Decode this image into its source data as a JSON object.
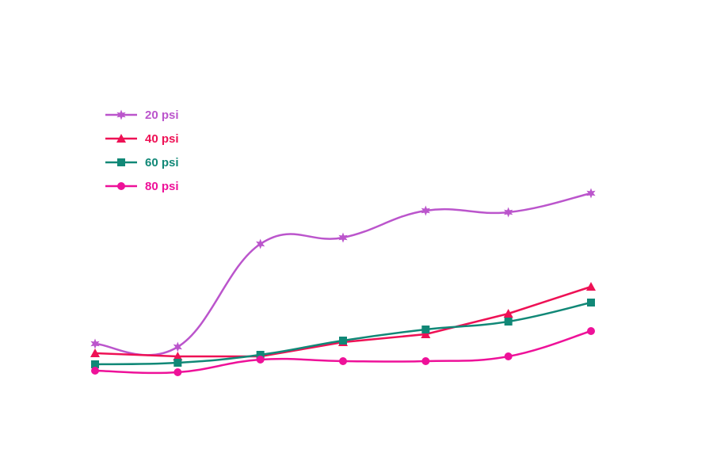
{
  "chart_data": {
    "type": "line",
    "title": "",
    "xlabel": "",
    "ylabel": "",
    "x": [
      1,
      2,
      3,
      4,
      5,
      6,
      7
    ],
    "ylim": [
      0,
      100
    ],
    "grid": false,
    "legend_position": "top-left",
    "series": [
      {
        "name": "20 psi",
        "color": "#bb55cc",
        "marker": "star",
        "curve": "smooth",
        "values": [
          13.5,
          12.5,
          45,
          47,
          55.5,
          55,
          61
        ]
      },
      {
        "name": "40 psi",
        "color": "#ee1155",
        "marker": "triangle",
        "curve": "straight",
        "values": [
          10.5,
          9.5,
          9.5,
          14,
          16.5,
          23,
          31.5
        ]
      },
      {
        "name": "60 psi",
        "color": "#118877",
        "marker": "square",
        "curve": "smooth",
        "values": [
          7,
          7.5,
          10,
          14.5,
          18,
          20.5,
          26.5
        ]
      },
      {
        "name": "80 psi",
        "color": "#ee1199",
        "marker": "circle",
        "curve": "smooth",
        "values": [
          5,
          4.5,
          8.5,
          8,
          8,
          9.5,
          17.5
        ]
      }
    ]
  }
}
